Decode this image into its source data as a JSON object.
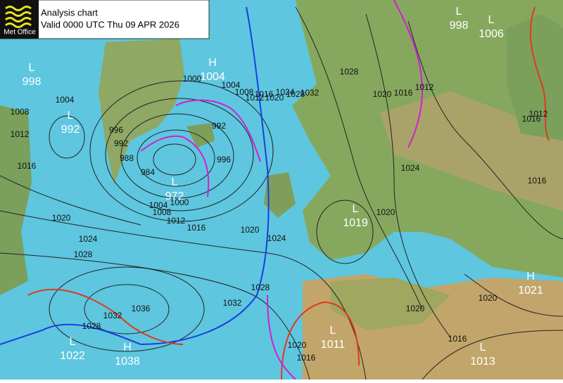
{
  "header": {
    "logo": "Met Office",
    "title": "Analysis chart",
    "valid": "Valid 0000 UTC Thu 09 APR 2026"
  },
  "centers": [
    {
      "type": "L",
      "value": 998
    },
    {
      "type": "L",
      "value": 992
    },
    {
      "type": "H",
      "value": 1004
    },
    {
      "type": "L",
      "value": 972
    },
    {
      "type": "L",
      "value": 1019
    },
    {
      "type": "H",
      "value": 1021
    },
    {
      "type": "L",
      "value": 1011
    },
    {
      "type": "L",
      "value": 1013
    },
    {
      "type": "L",
      "value": 1022
    },
    {
      "type": "H",
      "value": 1038
    },
    {
      "type": "L",
      "value": 998
    },
    {
      "type": "L",
      "value": 1006
    }
  ],
  "isobar_labels": [
    1008,
    1012,
    1016,
    1004,
    996,
    992,
    988,
    984,
    1000,
    1004,
    1008,
    1012,
    1016,
    1020,
    1024,
    1028,
    1032,
    1028,
    1020,
    1016,
    1012,
    992,
    996,
    1000,
    1004,
    1008,
    1012,
    1016,
    1020,
    1024,
    1028,
    1020,
    1024,
    1028,
    1032,
    1036,
    1032,
    1028,
    1020,
    1024,
    1016,
    1016,
    1012,
    1020,
    1020,
    1016,
    1020,
    1016
  ]
}
